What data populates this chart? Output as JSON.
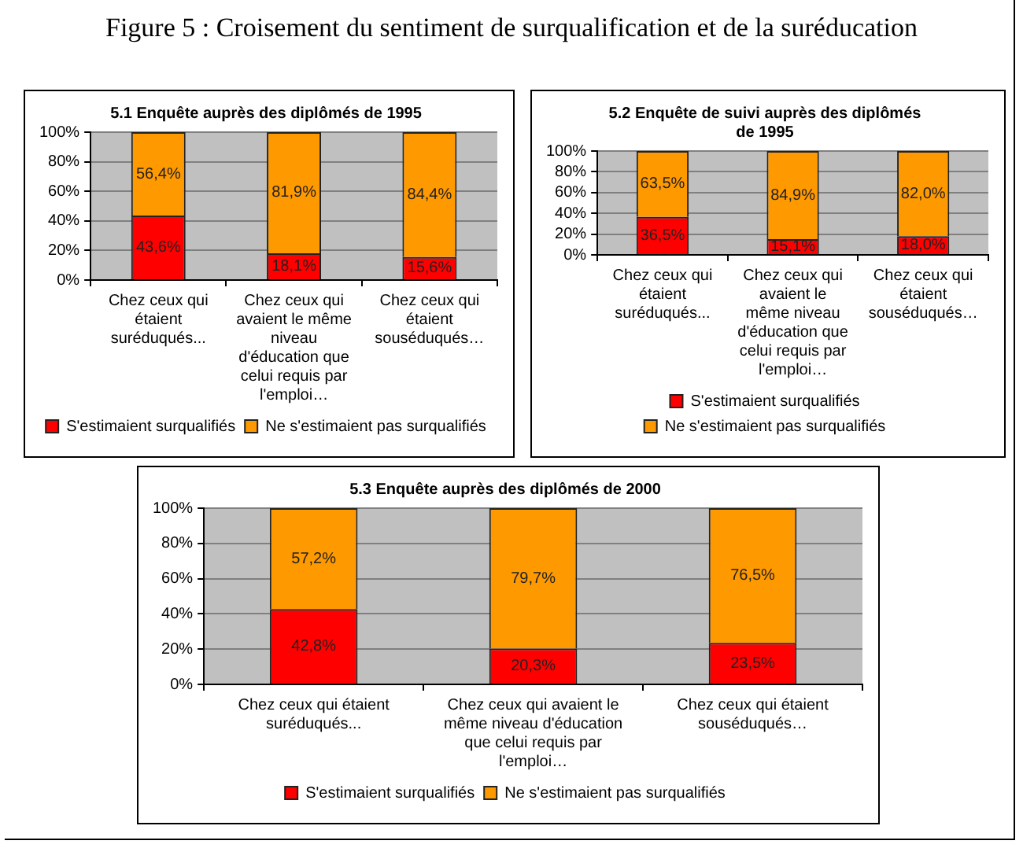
{
  "chart_data": [
    {
      "type": "bar",
      "title": "5.1 Enquête auprès des diplômés de 1995",
      "annotations": [
        "Figure 5 : Croisement du sentiment de surqualification et de la suréducation"
      ],
      "categories": [
        "Chez ceux qui étaient suréduqués...",
        "Chez ceux qui avaient le même niveau d'éducation que celui requis par l'emploi…",
        "Chez ceux qui étaient souséduqués…"
      ],
      "stacked": true,
      "series": [
        {
          "name": "S'estimaient surqualifiés",
          "color": "#ff0000",
          "values": [
            43.6,
            18.1,
            15.6
          ],
          "value_labels": [
            "43,6%",
            "18,1%",
            "15,6%"
          ]
        },
        {
          "name": "Ne s'estimaient pas surqualifiés",
          "color": "#ff9900",
          "values": [
            56.4,
            81.9,
            84.4
          ],
          "value_labels": [
            "56,4%",
            "81,9%",
            "84,4%"
          ]
        }
      ],
      "ylim": [
        0,
        100
      ],
      "yticks": [
        {
          "value": 0,
          "label": "0%"
        },
        {
          "value": 20,
          "label": "20%"
        },
        {
          "value": 40,
          "label": "40%"
        },
        {
          "value": 60,
          "label": "60%"
        },
        {
          "value": 80,
          "label": "80%"
        },
        {
          "value": 100,
          "label": "100%"
        }
      ],
      "grid": "y",
      "legend": "bottom"
    },
    {
      "type": "bar",
      "title": "5.2 Enquête de suivi auprès des diplômés de 1995",
      "categories": [
        "Chez ceux qui étaient suréduqués...",
        "Chez ceux qui avaient le même niveau d'éducation que celui requis par l'emploi…",
        "Chez ceux qui étaient souséduqués…"
      ],
      "stacked": true,
      "series": [
        {
          "name": "S'estimaient surqualifiés",
          "color": "#ff0000",
          "values": [
            36.5,
            15.1,
            18.0
          ],
          "value_labels": [
            "36,5%",
            "15,1%",
            "18,0%"
          ]
        },
        {
          "name": "Ne s'estimaient pas surqualifiés",
          "color": "#ff9900",
          "values": [
            63.5,
            84.9,
            82.0
          ],
          "value_labels": [
            "63,5%",
            "84,9%",
            "82,0%"
          ]
        }
      ],
      "ylim": [
        0,
        100
      ],
      "yticks": [
        {
          "value": 0,
          "label": "0%"
        },
        {
          "value": 20,
          "label": "20%"
        },
        {
          "value": 40,
          "label": "40%"
        },
        {
          "value": 60,
          "label": "60%"
        },
        {
          "value": 80,
          "label": "80%"
        },
        {
          "value": 100,
          "label": "100%"
        }
      ],
      "grid": "y",
      "legend": "bottom"
    },
    {
      "type": "bar",
      "title": "5.3 Enquête auprès des diplômés de 2000",
      "categories": [
        "Chez ceux qui étaient suréduqués...",
        "Chez ceux qui avaient le même niveau d'éducation que celui requis par l'emploi…",
        "Chez ceux qui étaient souséduqués…"
      ],
      "stacked": true,
      "series": [
        {
          "name": "S'estimaient surqualifiés",
          "color": "#ff0000",
          "values": [
            42.8,
            20.3,
            23.5
          ],
          "value_labels": [
            "42,8%",
            "20,3%",
            "23,5%"
          ]
        },
        {
          "name": "Ne s'estimaient pas surqualifiés",
          "color": "#ff9900",
          "values": [
            57.2,
            79.7,
            76.5
          ],
          "value_labels": [
            "57,2%",
            "79,7%",
            "76,5%"
          ]
        }
      ],
      "ylim": [
        0,
        100
      ],
      "yticks": [
        {
          "value": 0,
          "label": "0%"
        },
        {
          "value": 20,
          "label": "20%"
        },
        {
          "value": 40,
          "label": "40%"
        },
        {
          "value": 60,
          "label": "60%"
        },
        {
          "value": 80,
          "label": "80%"
        },
        {
          "value": 100,
          "label": "100%"
        }
      ],
      "grid": "y",
      "legend": "bottom"
    }
  ]
}
